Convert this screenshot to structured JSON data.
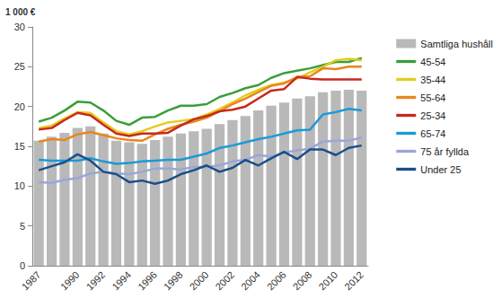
{
  "chart_data": {
    "type": "line",
    "ylabel": "1 000 €",
    "categories": [
      "1987",
      null,
      null,
      "1990",
      null,
      "1992",
      null,
      "1994",
      null,
      "1996",
      null,
      "1998",
      null,
      "2000",
      null,
      "2002",
      null,
      "2004",
      null,
      "2006",
      null,
      "2008",
      null,
      "2010",
      null,
      "2012"
    ],
    "ylim": [
      0,
      30
    ],
    "yticks": [
      0,
      5,
      10,
      15,
      20,
      25,
      30
    ],
    "grid": false,
    "legend": "right",
    "series": [
      {
        "name": "Samtliga hushåll",
        "type": "bar",
        "color": "#b9b9b9",
        "values": [
          15.7,
          16.2,
          16.7,
          17.3,
          17.5,
          16.6,
          15.7,
          15.5,
          15.3,
          15.8,
          16.2,
          16.6,
          16.9,
          17.2,
          17.8,
          18.3,
          18.8,
          19.5,
          20.1,
          20.5,
          21.0,
          21.3,
          21.8,
          22.0,
          22.1,
          22.0
        ]
      },
      {
        "name": "45-54",
        "type": "line",
        "color": "#3a9e3a",
        "values": [
          18.1,
          18.6,
          19.5,
          20.6,
          20.5,
          19.5,
          18.2,
          17.7,
          18.6,
          18.7,
          19.5,
          20.1,
          20.1,
          20.3,
          21.2,
          21.7,
          22.3,
          22.7,
          23.6,
          24.2,
          24.5,
          24.8,
          25.2,
          25.6,
          25.6,
          26.1
        ]
      },
      {
        "name": "35-44",
        "type": "line",
        "color": "#e3cc1c",
        "values": [
          17.3,
          17.6,
          18.5,
          19.3,
          19.2,
          18.0,
          16.9,
          16.5,
          16.9,
          17.5,
          18.0,
          18.2,
          18.4,
          19.0,
          19.7,
          20.5,
          21.4,
          22.1,
          22.7,
          23.0,
          23.5,
          24.3,
          25.0,
          25.8,
          26.0,
          25.8
        ]
      },
      {
        "name": "55-64",
        "type": "line",
        "color": "#e8861e",
        "values": [
          15.6,
          15.9,
          15.8,
          16.5,
          16.8,
          16.4,
          16.0,
          15.8,
          15.7,
          16.5,
          17.2,
          17.7,
          18.1,
          18.6,
          19.4,
          20.3,
          21.0,
          21.8,
          22.6,
          22.9,
          23.7,
          23.8,
          24.8,
          24.7,
          25.0,
          25.0
        ]
      },
      {
        "name": "25-34",
        "type": "line",
        "color": "#c8281e",
        "values": [
          17.1,
          17.3,
          18.3,
          19.2,
          18.9,
          17.7,
          16.6,
          16.3,
          16.6,
          16.6,
          16.7,
          17.6,
          18.4,
          18.8,
          19.4,
          19.6,
          20.0,
          21.0,
          22.0,
          22.2,
          23.7,
          23.5,
          23.4,
          23.4,
          23.4,
          23.4
        ]
      },
      {
        "name": "65-74",
        "type": "line",
        "color": "#1a9ad6",
        "values": [
          13.3,
          13.2,
          13.2,
          13.2,
          13.5,
          13.1,
          12.8,
          12.9,
          13.1,
          13.2,
          13.3,
          13.3,
          13.7,
          14.1,
          14.8,
          15.1,
          15.5,
          15.9,
          16.2,
          16.6,
          17.0,
          17.1,
          19.0,
          19.3,
          19.7,
          19.5
        ]
      },
      {
        "name": "75 år fyllda",
        "type": "line",
        "color": "#9aa6d8",
        "values": [
          10.5,
          10.4,
          10.8,
          11.0,
          11.6,
          11.8,
          11.6,
          11.5,
          11.8,
          12.2,
          12.2,
          12.1,
          12.4,
          12.4,
          12.6,
          13.1,
          13.3,
          13.9,
          13.7,
          14.2,
          14.5,
          14.7,
          15.6,
          15.7,
          15.7,
          16.1
        ]
      },
      {
        "name": "Under 25",
        "type": "line",
        "color": "#1a4f8a",
        "values": [
          12.0,
          12.5,
          13.0,
          14.0,
          13.2,
          11.8,
          11.5,
          10.5,
          10.7,
          10.3,
          10.7,
          11.5,
          12.0,
          12.6,
          11.8,
          12.3,
          13.3,
          12.6,
          13.5,
          14.3,
          13.4,
          14.6,
          14.6,
          13.9,
          14.8,
          15.1
        ]
      }
    ]
  }
}
